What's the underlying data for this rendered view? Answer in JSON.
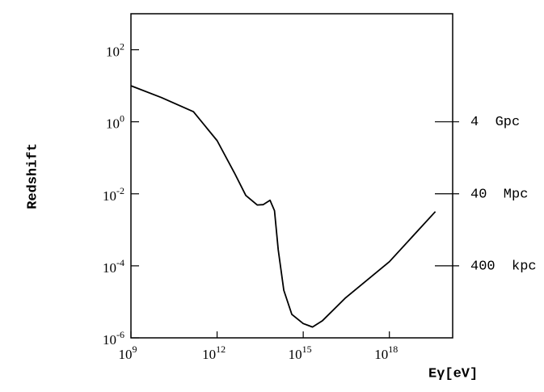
{
  "chart_data": {
    "type": "line",
    "x_label": "Eγ[eV]",
    "y_label": "Redshift",
    "log_x": true,
    "log_y": true,
    "color": "#000000",
    "x": [
      1000000000.0,
      11500000000.0,
      150000000000.0,
      1000000000000.0,
      4000000000000.0,
      10000000000000.0,
      25000000000000.0,
      40000000000000.0,
      70000000000000.0,
      100000000000000.0,
      135000000000000.0,
      210000000000000.0,
      400000000000000.0,
      1000000000000000.0,
      2100000000000000.0,
      4700000000000000.0,
      3e+16,
      1e+18,
      4e+19
    ],
    "series": [
      {
        "values": [
          10,
          4.7,
          1.9,
          0.3,
          0.038,
          0.009,
          0.0049,
          0.005,
          0.0066,
          0.0034,
          0.00028,
          2.1e-05,
          4.5e-06,
          2.5e-06,
          2e-06,
          3e-06,
          1.3e-05,
          0.00013,
          0.0032
        ]
      }
    ],
    "xlim": [
      1000000000.0,
      1.6e+20
    ],
    "xticks": [
      {
        "value": 1000000000.0,
        "label": "10^9"
      },
      {
        "value": 1000000000000.0,
        "label": "10^12"
      },
      {
        "value": 1000000000000000.0,
        "label": "10^15"
      },
      {
        "value": 1e+18,
        "label": "10^18"
      }
    ],
    "ylim": [
      1e-06,
      1000.0
    ],
    "yticks": [
      {
        "value": 1e-06,
        "label": "10^-6"
      },
      {
        "value": 0.0001,
        "label": "10^-4"
      },
      {
        "value": 0.01,
        "label": "10^-2"
      },
      {
        "value": 1,
        "label": "10^0"
      },
      {
        "value": 100,
        "label": "10^2"
      }
    ],
    "y2lim": [
      1e-06,
      1000.0
    ],
    "y2ticks": [
      {
        "value": 1,
        "label": "4  Gpc"
      },
      {
        "value": 0.01,
        "label": "40  Mpc"
      },
      {
        "value": 0.0001,
        "label": "400  kpc"
      }
    ]
  }
}
